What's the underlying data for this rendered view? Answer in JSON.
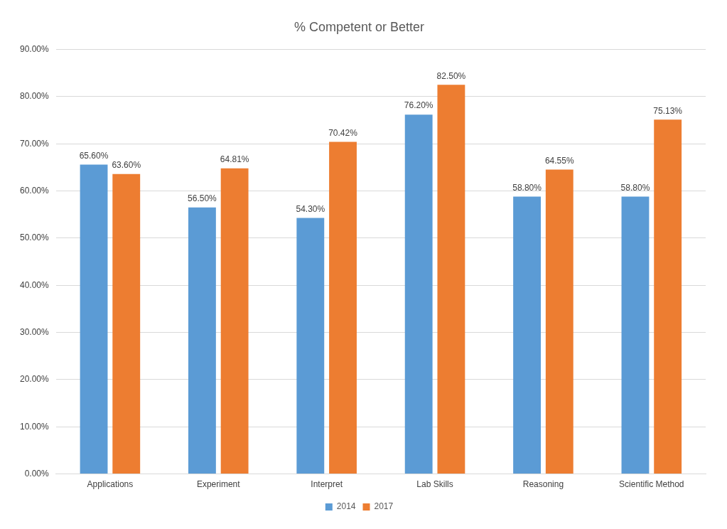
{
  "chart_data": {
    "type": "bar",
    "title": "% Competent or Better",
    "categories": [
      "Applications",
      "Experiment",
      "Interpret",
      "Lab Skills",
      "Reasoning",
      "Scientific Method"
    ],
    "series": [
      {
        "name": "2014",
        "color": "#5b9bd5",
        "values": [
          65.6,
          56.5,
          54.3,
          76.2,
          58.8,
          58.8
        ],
        "value_labels": [
          "65.60%",
          "56.50%",
          "54.30%",
          "76.20%",
          "58.80%",
          "58.80%"
        ]
      },
      {
        "name": "2017",
        "color": "#ed7d31",
        "values": [
          63.6,
          64.81,
          70.42,
          82.5,
          64.55,
          75.13
        ],
        "value_labels": [
          "63.60%",
          "64.81%",
          "70.42%",
          "82.50%",
          "64.55%",
          "75.13%"
        ]
      }
    ],
    "ylim": [
      0,
      90
    ],
    "yticks": [
      {
        "value": 0,
        "label": "0.00%"
      },
      {
        "value": 10,
        "label": "10.00%"
      },
      {
        "value": 20,
        "label": "20.00%"
      },
      {
        "value": 30,
        "label": "30.00%"
      },
      {
        "value": 40,
        "label": "40.00%"
      },
      {
        "value": 50,
        "label": "50.00%"
      },
      {
        "value": 60,
        "label": "60.00%"
      },
      {
        "value": 70,
        "label": "70.00%"
      },
      {
        "value": 80,
        "label": "80.00%"
      },
      {
        "value": 90,
        "label": "90.00%"
      }
    ],
    "grid": "y",
    "legend": "bottom"
  }
}
